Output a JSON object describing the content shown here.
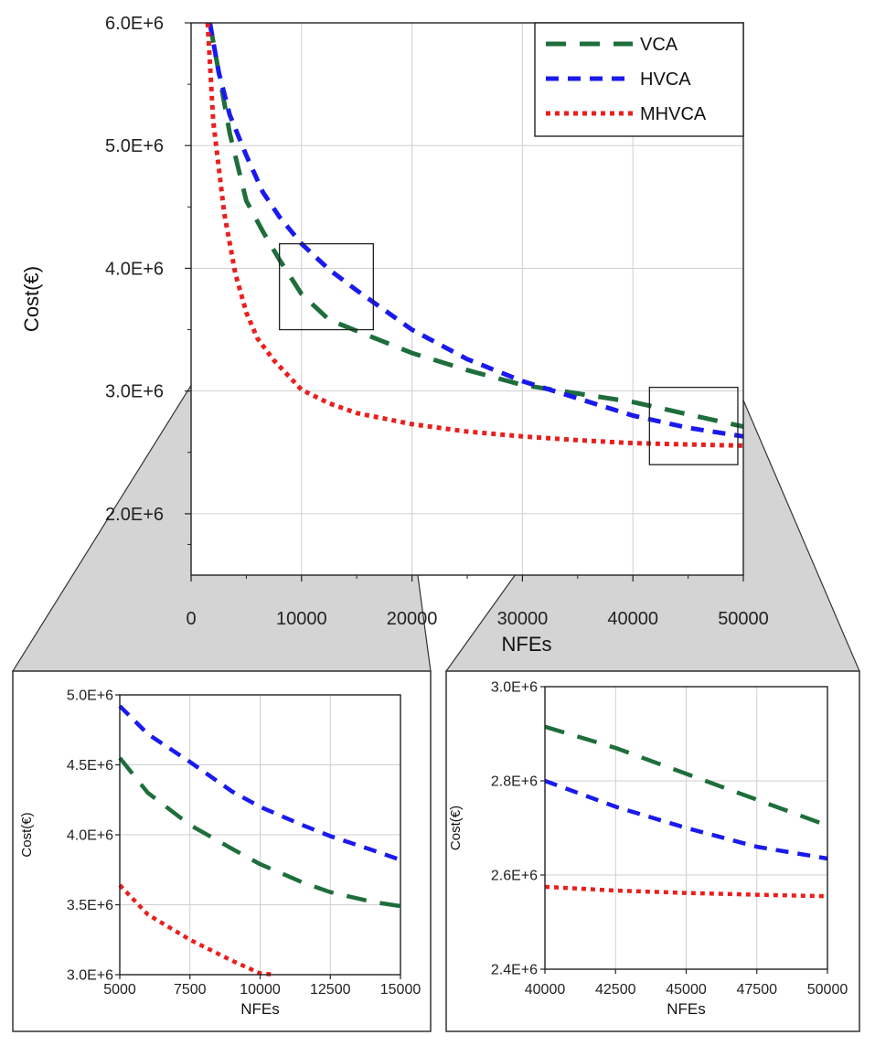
{
  "colors": {
    "vca": "#1e6e3c",
    "hvca": "#1a1aee",
    "mhvca": "#e8201f",
    "zoom_fill": "#d4d4d4",
    "grid": "#cfcfcf"
  },
  "chart_data": [
    {
      "id": "main",
      "type": "line",
      "title": "",
      "xlabel": "NFEs",
      "ylabel": "Cost(€)",
      "xlim": [
        0,
        50000
      ],
      "ylim": [
        1500000,
        6000000
      ],
      "xticks": [
        0,
        10000,
        20000,
        30000,
        40000,
        50000
      ],
      "xtick_labels": [
        "0",
        "10000",
        "20000",
        "30000",
        "40000",
        "50000"
      ],
      "yticks": [
        2000000,
        3000000,
        4000000,
        5000000,
        6000000
      ],
      "ytick_labels": [
        "2.0E+6",
        "3.0E+6",
        "4.0E+6",
        "5.0E+6",
        "6.0E+6"
      ],
      "legend": [
        "VCA",
        "HVCA",
        "MHVCA"
      ],
      "legend_position": "top-right",
      "grid": true,
      "zoom_regions": [
        {
          "x": [
            8000,
            16500
          ],
          "y": [
            3500000,
            4200000
          ]
        },
        {
          "x": [
            41500,
            49500
          ],
          "y": [
            2400000,
            3030000
          ]
        }
      ],
      "series": [
        {
          "name": "VCA",
          "style": "long-dash",
          "x": [
            1700,
            2500,
            3500,
            5000,
            6500,
            8000,
            10000,
            12500,
            15000,
            20000,
            25000,
            30000,
            35000,
            40000,
            45000,
            50000
          ],
          "y": [
            6000000,
            5600000,
            5100000,
            4550000,
            4300000,
            4070000,
            3790000,
            3580000,
            3490000,
            3310000,
            3170000,
            3050000,
            2980000,
            2910000,
            2810000,
            2710000
          ]
        },
        {
          "name": "HVCA",
          "style": "dash",
          "x": [
            1700,
            2500,
            3500,
            5000,
            6500,
            8000,
            10000,
            12500,
            15000,
            20000,
            25000,
            30000,
            35000,
            40000,
            45000,
            50000
          ],
          "y": [
            6000000,
            5600000,
            5250000,
            4920000,
            4620000,
            4420000,
            4200000,
            3990000,
            3820000,
            3500000,
            3260000,
            3080000,
            2940000,
            2800000,
            2700000,
            2630000
          ]
        },
        {
          "name": "MHVCA",
          "style": "dot",
          "x": [
            1500,
            2000,
            3000,
            4000,
            5000,
            6000,
            7500,
            10000,
            12500,
            15000,
            20000,
            25000,
            30000,
            35000,
            40000,
            45000,
            50000
          ],
          "y": [
            6000000,
            5200000,
            4450000,
            3960000,
            3640000,
            3430000,
            3250000,
            3010000,
            2900000,
            2820000,
            2730000,
            2670000,
            2630000,
            2600000,
            2575000,
            2565000,
            2555000
          ]
        }
      ]
    },
    {
      "id": "zoom-left",
      "type": "line",
      "xlabel": "NFEs",
      "ylabel": "Cost(€)",
      "xlim": [
        5000,
        15000
      ],
      "ylim": [
        3000000,
        5000000
      ],
      "xticks": [
        5000,
        7500,
        10000,
        12500,
        15000
      ],
      "xtick_labels": [
        "5000",
        "7500",
        "10000",
        "12500",
        "15000"
      ],
      "yticks": [
        3000000,
        3500000,
        4000000,
        4500000,
        5000000
      ],
      "ytick_labels": [
        "3.0E+6",
        "3.5E+6",
        "4.0E+6",
        "4.5E+6",
        "5.0E+6"
      ],
      "grid": true,
      "series": [
        {
          "name": "VCA",
          "style": "long-dash",
          "x": [
            5000,
            6000,
            7500,
            9000,
            10000,
            11500,
            12500,
            14000,
            15000
          ],
          "y": [
            4550000,
            4300000,
            4070000,
            3900000,
            3790000,
            3660000,
            3590000,
            3520000,
            3490000
          ]
        },
        {
          "name": "HVCA",
          "style": "dash",
          "x": [
            5000,
            6000,
            7500,
            9000,
            10000,
            11500,
            12500,
            14000,
            15000
          ],
          "y": [
            4920000,
            4720000,
            4520000,
            4310000,
            4200000,
            4070000,
            3990000,
            3890000,
            3820000
          ]
        },
        {
          "name": "MHVCA",
          "style": "dot",
          "x": [
            5000,
            6000,
            7500,
            9000,
            10000,
            10500
          ],
          "y": [
            3640000,
            3430000,
            3250000,
            3100000,
            3010000,
            3000000
          ]
        }
      ]
    },
    {
      "id": "zoom-right",
      "type": "line",
      "xlabel": "NFEs",
      "ylabel": "Cost(€)",
      "xlim": [
        40000,
        50000
      ],
      "ylim": [
        2400000,
        3000000
      ],
      "xticks": [
        40000,
        42500,
        45000,
        47500,
        50000
      ],
      "xtick_labels": [
        "40000",
        "42500",
        "45000",
        "47500",
        "50000"
      ],
      "yticks": [
        2400000,
        2600000,
        2800000,
        3000000
      ],
      "ytick_labels": [
        "2.4E+6",
        "2.6E+6",
        "2.8E+6",
        "3.0E+6"
      ],
      "grid": true,
      "series": [
        {
          "name": "VCA",
          "style": "long-dash",
          "x": [
            40000,
            42500,
            45000,
            47500,
            50000
          ],
          "y": [
            2915000,
            2870000,
            2815000,
            2760000,
            2705000
          ]
        },
        {
          "name": "HVCA",
          "style": "dash",
          "x": [
            40000,
            42500,
            45000,
            47500,
            50000
          ],
          "y": [
            2800000,
            2745000,
            2700000,
            2660000,
            2635000
          ]
        },
        {
          "name": "MHVCA",
          "style": "dot",
          "x": [
            40000,
            42500,
            45000,
            47500,
            50000
          ],
          "y": [
            2575000,
            2567000,
            2562000,
            2558000,
            2555000
          ]
        }
      ]
    }
  ]
}
